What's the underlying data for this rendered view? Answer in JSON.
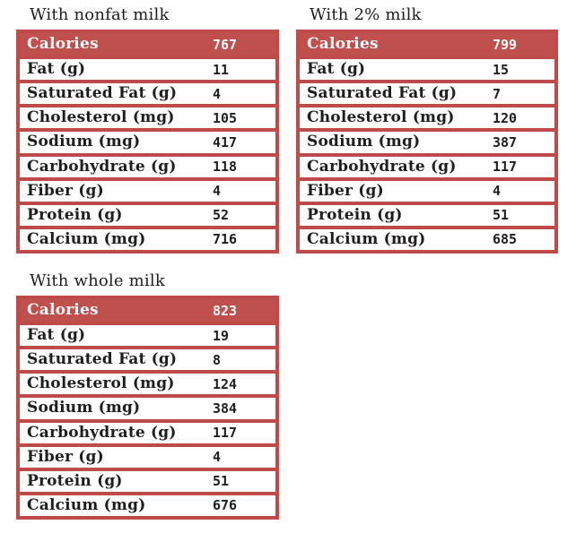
{
  "colors": {
    "table_red": "#C0504D",
    "border_red": "#BE4B48",
    "header_text": "#FFFFFF",
    "body_text": "#1E1E1E",
    "page_bg": "#FFFFFF"
  },
  "row_labels": [
    "Calories",
    "Fat (g)",
    "Saturated Fat (g)",
    "Cholesterol (mg)",
    "Sodium (mg)",
    "Carbohydrate (g)",
    "Fiber (g)",
    "Protein (g)",
    "Calcium (mg)"
  ],
  "tables": [
    {
      "title": "With nonfat milk",
      "values": [
        "767",
        "11",
        "4",
        "105",
        "417",
        "118",
        "4",
        "52",
        "716"
      ]
    },
    {
      "title": "With 2% milk",
      "values": [
        "799",
        "15",
        "7",
        "120",
        "387",
        "117",
        "4",
        "51",
        "685"
      ]
    },
    {
      "title": "With whole milk",
      "values": [
        "823",
        "19",
        "8",
        "124",
        "384",
        "117",
        "4",
        "51",
        "676"
      ]
    }
  ]
}
